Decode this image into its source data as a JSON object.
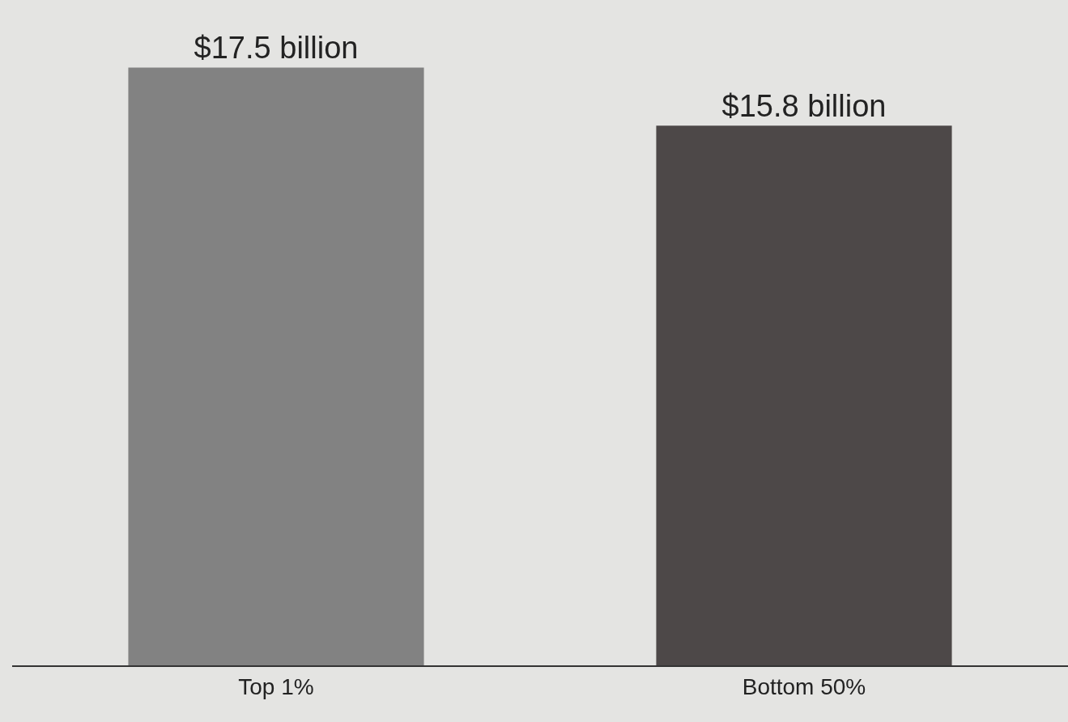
{
  "chart_data": {
    "type": "bar",
    "categories": [
      "Top 1%",
      "Bottom 50%"
    ],
    "values": [
      17.5,
      15.8
    ],
    "colors": [
      "#828282",
      "#4d4848"
    ],
    "value_labels": [
      "$17.5 billion",
      "$15.8 billion"
    ]
  }
}
